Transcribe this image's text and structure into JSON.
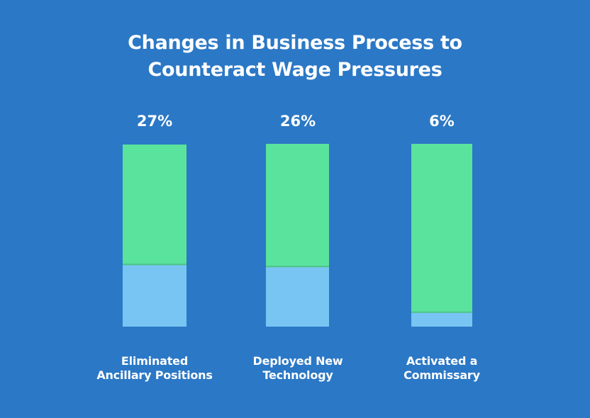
{
  "colors": {
    "background": "#2b78c6",
    "bar_track": "#5ae39c",
    "bar_fill": "#78c5f4",
    "text": "#ffffff"
  },
  "chart_data": {
    "type": "bar",
    "title": "Changes in Business Process to Counteract Wage Pressures",
    "title_lines": [
      "Changes in Business Process to",
      "Counteract Wage Pressures"
    ],
    "categories": [
      "Eliminated Ancillary Positions",
      "Deployed New Technology",
      "Activated a Commissary"
    ],
    "category_lines": [
      [
        "Eliminated",
        "Ancillary Positions"
      ],
      [
        "Deployed New",
        "Technology"
      ],
      [
        "Activated a",
        "Commissary"
      ]
    ],
    "values": [
      27,
      26,
      6
    ],
    "value_labels": [
      "27%",
      "26%",
      "6%"
    ],
    "ylim": [
      0,
      80
    ],
    "unit": "%",
    "grid": false,
    "legend": "none"
  }
}
